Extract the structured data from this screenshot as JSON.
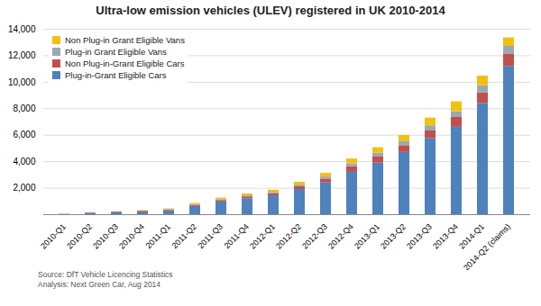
{
  "chart_data": {
    "type": "bar",
    "stacked": true,
    "title": "Ultra-low emission vehicles (ULEV) registered in UK 2010-2014",
    "categories": [
      "2010-Q1",
      "2010-Q2",
      "2010-Q3",
      "2010-Q4",
      "2011-Q1",
      "2011-Q2",
      "2011-Q3",
      "2011-Q4",
      "2012-Q1",
      "2012-Q2",
      "2012-Q3",
      "2012-Q4",
      "2013-Q1",
      "2013-Q2",
      "2013-Q3",
      "2013-Q4",
      "2014-Q1",
      "2014-Q2 (claims)"
    ],
    "series": [
      {
        "name": "Plug-in-Grant Eligible Cars",
        "color": "#4F81BD",
        "values": [
          25,
          110,
          170,
          210,
          300,
          620,
          960,
          1200,
          1420,
          1900,
          2400,
          3200,
          3900,
          4700,
          5750,
          6600,
          8400,
          11200
        ]
      },
      {
        "name": "Non Plug-in-Grant Eligible Cars",
        "color": "#C0504D",
        "values": [
          5,
          20,
          30,
          50,
          60,
          90,
          110,
          140,
          160,
          210,
          290,
          430,
          490,
          510,
          610,
          740,
          810,
          900
        ]
      },
      {
        "name": "Plug-in Grant Eligible Vans",
        "color": "#9BA9B5",
        "values": [
          2,
          8,
          12,
          20,
          30,
          50,
          65,
          85,
          105,
          125,
          155,
          210,
          255,
          305,
          355,
          440,
          530,
          610
        ]
      },
      {
        "name": "Non Plug-in Grant Eligible Vans",
        "color": "#F2C011",
        "values": [
          3,
          12,
          18,
          35,
          50,
          90,
          115,
          145,
          165,
          215,
          270,
          370,
          410,
          465,
          580,
          740,
          730,
          640
        ]
      }
    ],
    "ylim": [
      0,
      14000
    ],
    "yticks": [
      {
        "value": 2000,
        "label": "2,000"
      },
      {
        "value": 4000,
        "label": "4,000"
      },
      {
        "value": 6000,
        "label": "6,000"
      },
      {
        "value": 8000,
        "label": "8,000"
      },
      {
        "value": 10000,
        "label": "10,000"
      },
      {
        "value": 12000,
        "label": "12,000"
      },
      {
        "value": 14000,
        "label": "14,000"
      }
    ],
    "grid": true,
    "legend": "upper left",
    "annotations": [
      "Source: DfT Vehicle Licencing Statistics\nAnalysis: Next Green Car, Aug 2014"
    ]
  }
}
